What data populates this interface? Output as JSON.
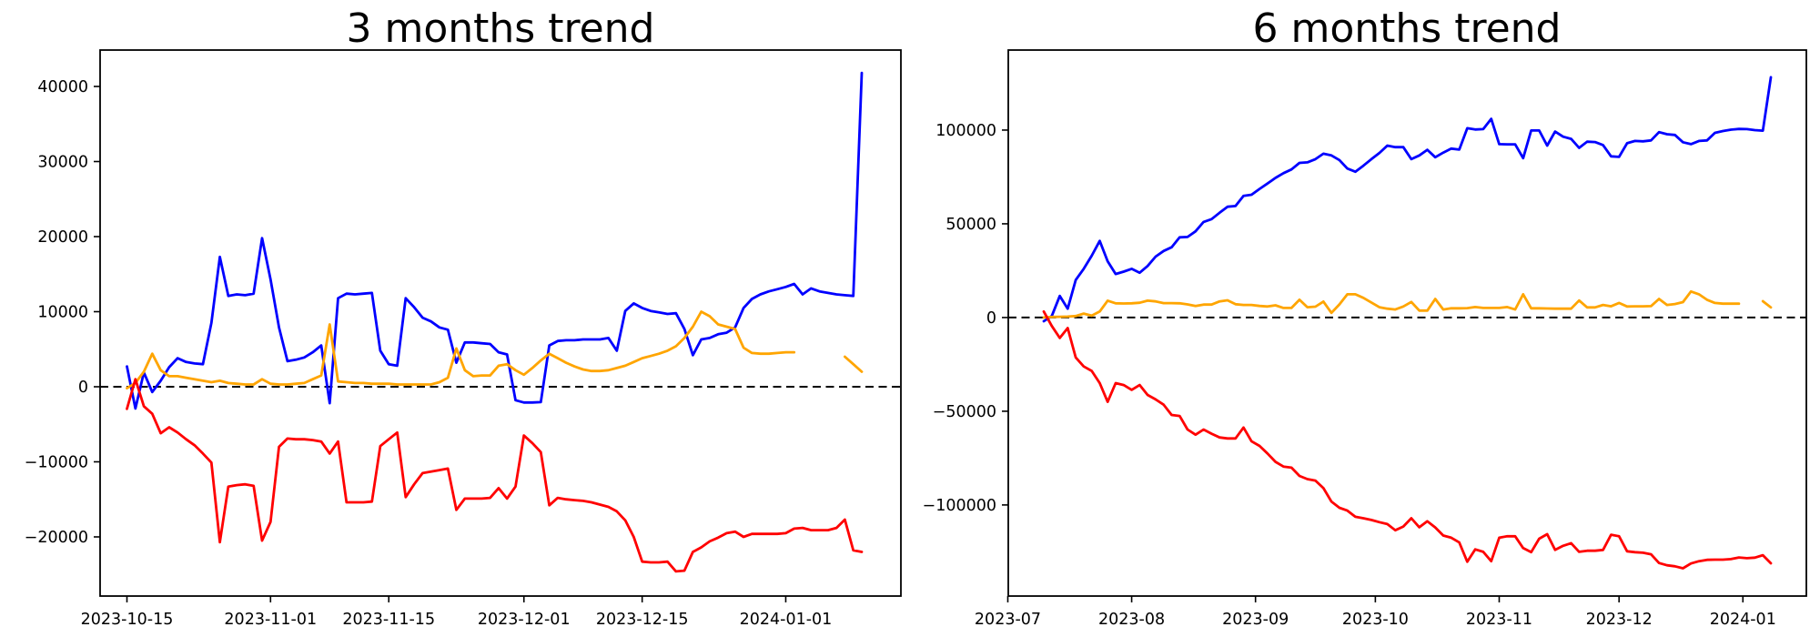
{
  "figure": {
    "background": "#ffffff",
    "frame_color": "#000000",
    "zero_line_color": "#000000",
    "series_colors": {
      "blue": "#0000ff",
      "orange": "#ffa500",
      "red": "#ff0000"
    }
  },
  "chart_data": [
    {
      "type": "line",
      "title": "3 months trend",
      "grid": false,
      "legend_position": null,
      "zero_line": true,
      "ylim": [
        -27880,
        44850
      ],
      "yticks": [
        {
          "value": 40000,
          "label": "40000"
        },
        {
          "value": 30000,
          "label": "30000"
        },
        {
          "value": 20000,
          "label": "20000"
        },
        {
          "value": 10000,
          "label": "10000"
        },
        {
          "value": 0,
          "label": "0"
        },
        {
          "value": -10000,
          "label": "−10000"
        },
        {
          "value": -20000,
          "label": "−20000"
        }
      ],
      "xticks": [
        {
          "date": "2023-10-15",
          "label": "2023-10-15"
        },
        {
          "date": "2023-11-01",
          "label": "2023-11-01"
        },
        {
          "date": "2023-11-15",
          "label": "2023-11-15"
        },
        {
          "date": "2023-12-01",
          "label": "2023-12-01"
        },
        {
          "date": "2023-12-15",
          "label": "2023-12-15"
        },
        {
          "date": "2024-01-01",
          "label": "2024-01-01"
        }
      ],
      "x_dates": [
        "2023-10-15",
        "2023-10-16",
        "2023-10-17",
        "2023-10-18",
        "2023-10-19",
        "2023-10-20",
        "2023-10-21",
        "2023-10-22",
        "2023-10-23",
        "2023-10-24",
        "2023-10-25",
        "2023-10-26",
        "2023-10-27",
        "2023-10-28",
        "2023-10-29",
        "2023-10-30",
        "2023-10-31",
        "2023-11-01",
        "2023-11-02",
        "2023-11-03",
        "2023-11-04",
        "2023-11-05",
        "2023-11-06",
        "2023-11-07",
        "2023-11-08",
        "2023-11-09",
        "2023-11-10",
        "2023-11-11",
        "2023-11-12",
        "2023-11-13",
        "2023-11-14",
        "2023-11-15",
        "2023-11-16",
        "2023-11-17",
        "2023-11-18",
        "2023-11-19",
        "2023-11-20",
        "2023-11-21",
        "2023-11-22",
        "2023-11-23",
        "2023-11-24",
        "2023-11-25",
        "2023-11-26",
        "2023-11-27",
        "2023-11-28",
        "2023-11-29",
        "2023-11-30",
        "2023-12-01",
        "2023-12-02",
        "2023-12-03",
        "2023-12-04",
        "2023-12-05",
        "2023-12-06",
        "2023-12-07",
        "2023-12-08",
        "2023-12-09",
        "2023-12-10",
        "2023-12-11",
        "2023-12-12",
        "2023-12-13",
        "2023-12-14",
        "2023-12-15",
        "2023-12-16",
        "2023-12-17",
        "2023-12-18",
        "2023-12-19",
        "2023-12-20",
        "2023-12-21",
        "2023-12-22",
        "2023-12-23",
        "2023-12-24",
        "2023-12-25",
        "2023-12-26",
        "2023-12-27",
        "2023-12-28",
        "2023-12-29",
        "2023-12-30",
        "2023-12-31",
        "2024-01-01",
        "2024-01-02",
        "2024-01-03",
        "2024-01-04",
        "2024-01-05",
        "2024-01-06",
        "2024-01-07",
        "2024-01-08",
        "2024-01-09",
        "2024-01-10"
      ],
      "series": [
        {
          "name": "blue",
          "color": "#0000ff",
          "values": [
            2700,
            -2900,
            1900,
            -700,
            800,
            2600,
            3800,
            3300,
            3100,
            3000,
            8500,
            17300,
            12100,
            12300,
            12200,
            12400,
            19800,
            14300,
            7900,
            3400,
            3600,
            3900,
            4600,
            5500,
            -2200,
            11800,
            12400,
            12300,
            12400,
            12500,
            4800,
            3000,
            2800,
            11800,
            10600,
            9200,
            8700,
            7900,
            7600,
            3200,
            5900,
            5900,
            5800,
            5700,
            4600,
            4300,
            -1800,
            -2100,
            -2100,
            -2050,
            5500,
            6100,
            6200,
            6200,
            6300,
            6300,
            6300,
            6500,
            4800,
            10100,
            11100,
            10500,
            10100,
            9900,
            9700,
            9800,
            7700,
            4200,
            6300,
            6500,
            7000,
            7200,
            7900,
            10500,
            11700,
            12300,
            12700,
            13000,
            13300,
            13700,
            12300,
            13100,
            12700,
            12500,
            12300,
            12200,
            12100,
            41800
          ]
        },
        {
          "name": "orange",
          "color": "#ffa500",
          "values": [
            -200,
            500,
            2000,
            4400,
            2200,
            1400,
            1400,
            1200,
            1000,
            800,
            600,
            800,
            500,
            400,
            300,
            300,
            1000,
            400,
            300,
            300,
            400,
            500,
            1000,
            1500,
            8300,
            700,
            600,
            500,
            500,
            400,
            400,
            400,
            300,
            300,
            300,
            300,
            300,
            600,
            1200,
            5100,
            2200,
            1400,
            1500,
            1500,
            2800,
            3000,
            2200,
            1600,
            2500,
            3500,
            4400,
            3800,
            3200,
            2700,
            2300,
            2100,
            2100,
            2200,
            2500,
            2800,
            3300,
            3800,
            4100,
            4400,
            4800,
            5400,
            6500,
            8000,
            10000,
            9400,
            8300,
            8000,
            7700,
            5200,
            4500,
            4400,
            4400,
            4500,
            4600,
            4600,
            null,
            null,
            null,
            null,
            null,
            4000,
            3000,
            2000
          ]
        },
        {
          "name": "red",
          "color": "#ff0000",
          "values": [
            -2950,
            1000,
            -2600,
            -3600,
            -6200,
            -5400,
            -6100,
            -7000,
            -7800,
            -8900,
            -10100,
            -20700,
            -13300,
            -13100,
            -13000,
            -13200,
            -20500,
            -18000,
            -8000,
            -6900,
            -7000,
            -7000,
            -7100,
            -7300,
            -8900,
            -7300,
            -15400,
            -15400,
            -15400,
            -15300,
            -7900,
            -7000,
            -6100,
            -14700,
            -13000,
            -11500,
            -11300,
            -11100,
            -10900,
            -16400,
            -14900,
            -14900,
            -14900,
            -14800,
            -13500,
            -14900,
            -13300,
            -6500,
            -7500,
            -8700,
            -15800,
            -14800,
            -15000,
            -15100,
            -15200,
            -15400,
            -15700,
            -16000,
            -16600,
            -17800,
            -20000,
            -23300,
            -23400,
            -23400,
            -23300,
            -24600,
            -24500,
            -22000,
            -21400,
            -20600,
            -20100,
            -19500,
            -19300,
            -20000,
            -19600,
            -19600,
            -19600,
            -19600,
            -19500,
            -18900,
            -18800,
            -19100,
            -19100,
            -19100,
            -18800,
            -17700,
            -21800,
            -22000
          ]
        }
      ]
    },
    {
      "type": "line",
      "title": "6 months trend",
      "grid": false,
      "legend_position": null,
      "zero_line": true,
      "ylim": [
        -148600,
        142700
      ],
      "yticks": [
        {
          "value": 100000,
          "label": "100000"
        },
        {
          "value": 50000,
          "label": "50000"
        },
        {
          "value": 0,
          "label": "0"
        },
        {
          "value": -50000,
          "label": "−50000"
        },
        {
          "value": -100000,
          "label": "−100000"
        }
      ],
      "xticks": [
        {
          "date": "2023-07-01",
          "label": "2023-07"
        },
        {
          "date": "2023-08-01",
          "label": "2023-08"
        },
        {
          "date": "2023-09-01",
          "label": "2023-09"
        },
        {
          "date": "2023-10-01",
          "label": "2023-10"
        },
        {
          "date": "2023-11-01",
          "label": "2023-11"
        },
        {
          "date": "2023-12-01",
          "label": "2023-12"
        },
        {
          "date": "2024-01-01",
          "label": "2024-01"
        }
      ],
      "x_dates": [
        "2023-07-10",
        "2023-07-12",
        "2023-07-14",
        "2023-07-16",
        "2023-07-18",
        "2023-07-20",
        "2023-07-22",
        "2023-07-24",
        "2023-07-26",
        "2023-07-28",
        "2023-07-30",
        "2023-08-01",
        "2023-08-03",
        "2023-08-05",
        "2023-08-07",
        "2023-08-09",
        "2023-08-11",
        "2023-08-13",
        "2023-08-15",
        "2023-08-17",
        "2023-08-19",
        "2023-08-21",
        "2023-08-23",
        "2023-08-25",
        "2023-08-27",
        "2023-08-29",
        "2023-08-31",
        "2023-09-02",
        "2023-09-04",
        "2023-09-06",
        "2023-09-08",
        "2023-09-10",
        "2023-09-12",
        "2023-09-14",
        "2023-09-16",
        "2023-09-18",
        "2023-09-20",
        "2023-09-22",
        "2023-09-24",
        "2023-09-26",
        "2023-09-28",
        "2023-09-30",
        "2023-10-02",
        "2023-10-04",
        "2023-10-06",
        "2023-10-08",
        "2023-10-10",
        "2023-10-12",
        "2023-10-14",
        "2023-10-16",
        "2023-10-18",
        "2023-10-20",
        "2023-10-22",
        "2023-10-24",
        "2023-10-26",
        "2023-10-28",
        "2023-10-30",
        "2023-11-01",
        "2023-11-03",
        "2023-11-05",
        "2023-11-07",
        "2023-11-09",
        "2023-11-11",
        "2023-11-13",
        "2023-11-15",
        "2023-11-17",
        "2023-11-19",
        "2023-11-21",
        "2023-11-23",
        "2023-11-25",
        "2023-11-27",
        "2023-11-29",
        "2023-12-01",
        "2023-12-03",
        "2023-12-05",
        "2023-12-07",
        "2023-12-09",
        "2023-12-11",
        "2023-12-13",
        "2023-12-15",
        "2023-12-17",
        "2023-12-19",
        "2023-12-21",
        "2023-12-23",
        "2023-12-25",
        "2023-12-27",
        "2023-12-29",
        "2023-12-31",
        "2024-01-02",
        "2024-01-04",
        "2024-01-06",
        "2024-01-08"
      ],
      "series": [
        {
          "name": "blue",
          "color": "#0000ff",
          "values": [
            -2000,
            800,
            11500,
            4700,
            20000,
            26000,
            33000,
            40900,
            30000,
            23200,
            24500,
            26000,
            23900,
            27500,
            32500,
            35500,
            37500,
            42800,
            43000,
            46000,
            51000,
            52500,
            55900,
            59100,
            59500,
            64900,
            65500,
            68600,
            71500,
            74500,
            77000,
            79000,
            82500,
            82800,
            84500,
            87400,
            86500,
            84000,
            79500,
            77800,
            81000,
            84500,
            87800,
            91700,
            90900,
            90900,
            84500,
            86500,
            89500,
            85500,
            88000,
            90100,
            89600,
            101000,
            100300,
            100500,
            106000,
            92500,
            92400,
            92400,
            85000,
            99800,
            99800,
            91700,
            99200,
            96500,
            95300,
            90500,
            93800,
            93600,
            92000,
            86000,
            85700,
            93000,
            94200,
            94000,
            94500,
            98900,
            97800,
            97400,
            93500,
            92500,
            94200,
            94500,
            98500,
            99500,
            100200,
            100600,
            100500,
            100000,
            99700,
            128200
          ]
        },
        {
          "name": "orange",
          "color": "#ffa500",
          "values": [
            0,
            300,
            400,
            500,
            800,
            2100,
            1000,
            3200,
            9000,
            7600,
            7500,
            7600,
            7900,
            9000,
            8600,
            7700,
            7700,
            7600,
            7000,
            6200,
            6900,
            6900,
            8600,
            9200,
            7100,
            6700,
            6700,
            6200,
            5900,
            6500,
            5100,
            5100,
            9500,
            5500,
            5800,
            8500,
            2500,
            7000,
            12400,
            12400,
            10500,
            8000,
            5500,
            4700,
            4300,
            5900,
            8300,
            3700,
            3700,
            9900,
            4300,
            4900,
            4900,
            5000,
            5600,
            5100,
            5100,
            5100,
            5600,
            4300,
            12400,
            4900,
            4900,
            4800,
            4700,
            4700,
            4700,
            9100,
            5400,
            5400,
            6700,
            6000,
            7800,
            5900,
            6000,
            6000,
            6100,
            9900,
            6700,
            7200,
            8200,
            13900,
            12400,
            9500,
            7800,
            7400,
            7400,
            7400,
            null,
            null,
            8700,
            5400
          ]
        },
        {
          "name": "red",
          "color": "#ff0000",
          "values": [
            3200,
            -4500,
            -10900,
            -5600,
            -21300,
            -26100,
            -28500,
            -35000,
            -45000,
            -35000,
            -36000,
            -38600,
            -36000,
            -41300,
            -43700,
            -46500,
            -52000,
            -52500,
            -59750,
            -62500,
            -59750,
            -62000,
            -64000,
            -64500,
            -64500,
            -58700,
            -66000,
            -68500,
            -72500,
            -77000,
            -79500,
            -80100,
            -84500,
            -86200,
            -87000,
            -91000,
            -98200,
            -101500,
            -103000,
            -106300,
            -107100,
            -108000,
            -109200,
            -110200,
            -113500,
            -111500,
            -107100,
            -111900,
            -108700,
            -112000,
            -116300,
            -117500,
            -120000,
            -130300,
            -123700,
            -125000,
            -130000,
            -117500,
            -116700,
            -116700,
            -123000,
            -125200,
            -118000,
            -115600,
            -124000,
            -121800,
            -120400,
            -125000,
            -124400,
            -124400,
            -124000,
            -115900,
            -116700,
            -124700,
            -125200,
            -125500,
            -126300,
            -131000,
            -132200,
            -132700,
            -133800,
            -131200,
            -130000,
            -129300,
            -129200,
            -129200,
            -128900,
            -128000,
            -128400,
            -128100,
            -126800,
            -131100
          ]
        }
      ]
    }
  ]
}
